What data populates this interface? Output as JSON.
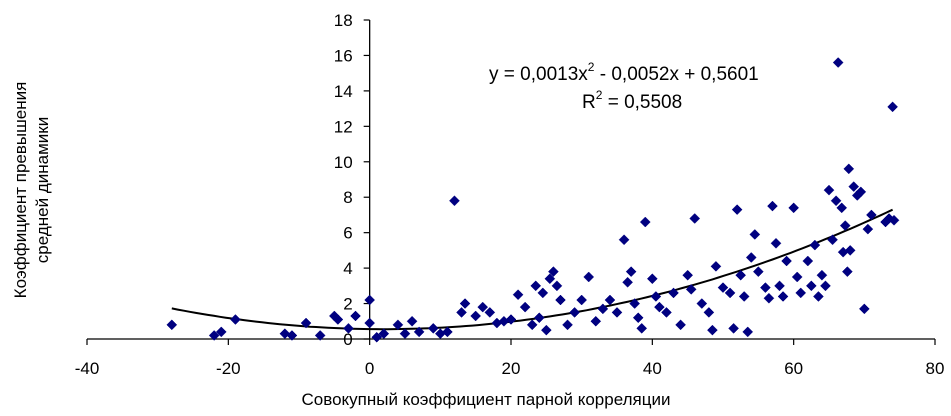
{
  "chart_data": {
    "type": "scatter",
    "xlabel": "Совокупный коэффициент парной корреляции",
    "ylabel_lines": [
      "Коэффициент превышения",
      "средней динамики"
    ],
    "xlim": [
      -40,
      80
    ],
    "ylim": [
      0,
      18
    ],
    "x_ticks": [
      -40,
      -20,
      0,
      20,
      40,
      60,
      80
    ],
    "y_ticks": [
      0,
      2,
      4,
      6,
      8,
      10,
      12,
      14,
      16,
      18
    ],
    "x_tick_labels": [
      "-40",
      "-20",
      "0",
      "20",
      "40",
      "60",
      "80"
    ],
    "y_tick_labels": [
      "0",
      "2",
      "4",
      "6",
      "8",
      "10",
      "12",
      "14",
      "16",
      "18"
    ],
    "grid": false,
    "legend": "none",
    "marker_color": "#000080",
    "trendline": {
      "type": "polynomial",
      "coefficients": [
        0.0013,
        -0.0052,
        0.5601
      ],
      "x_range": [
        -28,
        74
      ],
      "equation_label": "y = 0,0013x² - 0,0052x + 0,5601",
      "equation_parts": [
        "y = 0,0013x",
        "2",
        " - 0,0052x + 0,5601"
      ],
      "r2_parts": [
        "R",
        "2",
        " = 0,5508"
      ]
    },
    "series": [
      {
        "points": [
          [
            -28,
            0.8
          ],
          [
            -22,
            0.2
          ],
          [
            -21,
            0.4
          ],
          [
            -19,
            1.1
          ],
          [
            -12,
            0.3
          ],
          [
            -11,
            0.2
          ],
          [
            -9,
            0.9
          ],
          [
            -7,
            0.2
          ],
          [
            -5,
            1.3
          ],
          [
            -4.5,
            1.1
          ],
          [
            -3,
            0.6
          ],
          [
            -2,
            1.3
          ],
          [
            0,
            2.2
          ],
          [
            0,
            0.9
          ],
          [
            1,
            0.1
          ],
          [
            2,
            0.3
          ],
          [
            4,
            0.8
          ],
          [
            5,
            0.3
          ],
          [
            6,
            1.0
          ],
          [
            7,
            0.4
          ],
          [
            9,
            0.6
          ],
          [
            10,
            0.3
          ],
          [
            11,
            0.4
          ],
          [
            12,
            7.8
          ],
          [
            13,
            1.5
          ],
          [
            13.5,
            2.0
          ],
          [
            15,
            1.3
          ],
          [
            16,
            1.8
          ],
          [
            17,
            1.5
          ],
          [
            18,
            0.9
          ],
          [
            19,
            1.0
          ],
          [
            20,
            1.1
          ],
          [
            21,
            2.5
          ],
          [
            22,
            1.8
          ],
          [
            23,
            0.8
          ],
          [
            23.5,
            3.0
          ],
          [
            24,
            1.2
          ],
          [
            24.5,
            2.6
          ],
          [
            25,
            0.5
          ],
          [
            25.5,
            3.4
          ],
          [
            26,
            3.8
          ],
          [
            26.5,
            3.0
          ],
          [
            27,
            2.2
          ],
          [
            28,
            0.8
          ],
          [
            29,
            1.5
          ],
          [
            30,
            2.2
          ],
          [
            31,
            3.5
          ],
          [
            32,
            1.0
          ],
          [
            33,
            1.7
          ],
          [
            34,
            2.2
          ],
          [
            35,
            1.5
          ],
          [
            36,
            5.6
          ],
          [
            36.5,
            3.2
          ],
          [
            37,
            3.8
          ],
          [
            37.5,
            2.0
          ],
          [
            38,
            1.2
          ],
          [
            38.5,
            0.6
          ],
          [
            39,
            6.6
          ],
          [
            40,
            3.4
          ],
          [
            40.5,
            2.4
          ],
          [
            41,
            1.8
          ],
          [
            42,
            1.5
          ],
          [
            43,
            2.6
          ],
          [
            44,
            0.8
          ],
          [
            45,
            3.6
          ],
          [
            45.5,
            2.8
          ],
          [
            46,
            6.8
          ],
          [
            47,
            2.0
          ],
          [
            48,
            1.5
          ],
          [
            48.5,
            0.5
          ],
          [
            49,
            4.1
          ],
          [
            50,
            2.9
          ],
          [
            51,
            2.6
          ],
          [
            51.5,
            0.6
          ],
          [
            52,
            7.3
          ],
          [
            52.5,
            3.6
          ],
          [
            53,
            2.4
          ],
          [
            53.5,
            0.4
          ],
          [
            54,
            4.6
          ],
          [
            54.5,
            5.9
          ],
          [
            55,
            3.8
          ],
          [
            56,
            2.9
          ],
          [
            56.5,
            2.3
          ],
          [
            57,
            7.5
          ],
          [
            57.5,
            5.4
          ],
          [
            58,
            3.0
          ],
          [
            58.5,
            2.4
          ],
          [
            59,
            4.4
          ],
          [
            60,
            7.4
          ],
          [
            60.5,
            3.5
          ],
          [
            61,
            2.6
          ],
          [
            62,
            4.4
          ],
          [
            62.5,
            3.0
          ],
          [
            63,
            5.3
          ],
          [
            63.5,
            2.4
          ],
          [
            64,
            3.6
          ],
          [
            64.5,
            3.0
          ],
          [
            65,
            8.4
          ],
          [
            65.5,
            5.6
          ],
          [
            66,
            7.8
          ],
          [
            66.3,
            15.6
          ],
          [
            66.8,
            7.4
          ],
          [
            67,
            4.9
          ],
          [
            67.3,
            6.4
          ],
          [
            67.6,
            3.8
          ],
          [
            67.8,
            9.6
          ],
          [
            68,
            5.0
          ],
          [
            68.5,
            8.6
          ],
          [
            69,
            8.1
          ],
          [
            69.5,
            8.3
          ],
          [
            70,
            1.7
          ],
          [
            70.5,
            6.2
          ],
          [
            71,
            7.0
          ],
          [
            73,
            6.6
          ],
          [
            73.5,
            6.8
          ],
          [
            74,
            13.1
          ],
          [
            74.2,
            6.7
          ]
        ]
      }
    ]
  }
}
